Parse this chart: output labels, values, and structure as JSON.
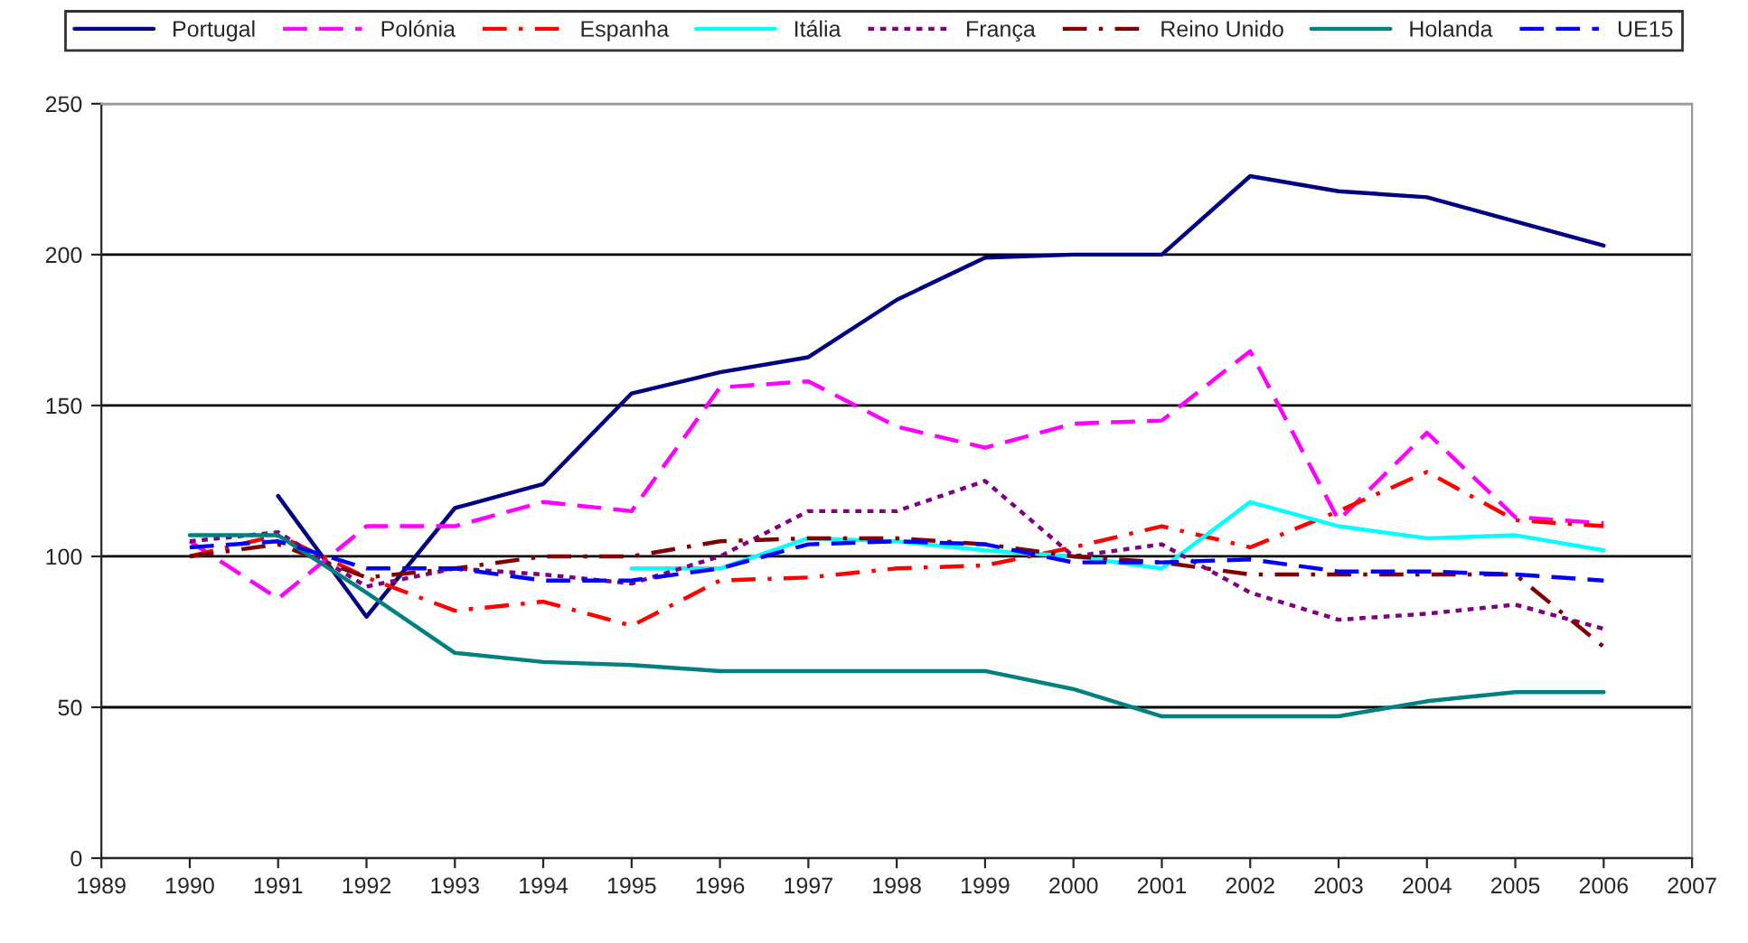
{
  "chart_data": {
    "type": "line",
    "x": [
      1990,
      1991,
      1992,
      1993,
      1994,
      1995,
      1996,
      1997,
      1998,
      1999,
      2000,
      2001,
      2002,
      2003,
      2004,
      2005,
      2006
    ],
    "series": [
      {
        "name": "Portugal",
        "color": "#000080",
        "line_style": "solid",
        "values": [
          null,
          120,
          80,
          116,
          124,
          154,
          161,
          166,
          185,
          199,
          200,
          200,
          226,
          221,
          219,
          211,
          203
        ]
      },
      {
        "name": "Polónia",
        "color": "#ff00ff",
        "line_style": "dashed",
        "values": [
          105,
          86,
          110,
          110,
          118,
          115,
          156,
          158,
          143,
          136,
          144,
          145,
          168,
          112,
          141,
          113,
          111
        ]
      },
      {
        "name": "Espanha",
        "color": "#ff0000",
        "line_style": "dashdot",
        "values": [
          100,
          107,
          93,
          82,
          85,
          77,
          92,
          93,
          96,
          97,
          103,
          110,
          103,
          115,
          128,
          112,
          110
        ]
      },
      {
        "name": "Itália",
        "color": "#00ffff",
        "line_style": "solid",
        "values": [
          null,
          null,
          null,
          null,
          null,
          96,
          96,
          106,
          105,
          102,
          100,
          96,
          118,
          110,
          106,
          107,
          102
        ]
      },
      {
        "name": "França",
        "color": "#800080",
        "line_style": "dotted",
        "values": [
          105,
          108,
          90,
          96,
          94,
          91,
          100,
          115,
          115,
          125,
          100,
          104,
          88,
          79,
          81,
          84,
          76
        ]
      },
      {
        "name": "Reino Unido",
        "color": "#800000",
        "line_style": "dashdot",
        "values": [
          100,
          104,
          93,
          96,
          100,
          100,
          105,
          106,
          106,
          104,
          100,
          98,
          94,
          94,
          94,
          94,
          70
        ]
      },
      {
        "name": "Holanda",
        "color": "#008080",
        "line_style": "solid",
        "values": [
          107,
          107,
          88,
          68,
          65,
          64,
          62,
          62,
          62,
          62,
          56,
          47,
          47,
          47,
          52,
          55,
          55
        ]
      },
      {
        "name": "UE15",
        "color": "#0000ff",
        "line_style": "dashed",
        "values": [
          103,
          105,
          96,
          96,
          92,
          92,
          96,
          104,
          105,
          104,
          98,
          98,
          99,
          95,
          95,
          94,
          92
        ]
      }
    ],
    "xlim": [
      1989,
      2007
    ],
    "xticks": [
      1989,
      1990,
      1991,
      1992,
      1993,
      1994,
      1995,
      1996,
      1997,
      1998,
      1999,
      2000,
      2001,
      2002,
      2003,
      2004,
      2005,
      2006,
      2007
    ],
    "ylim": [
      0,
      250
    ],
    "yticks": [
      0,
      50,
      100,
      150,
      200,
      250
    ],
    "grid": "y",
    "legend": "top"
  }
}
